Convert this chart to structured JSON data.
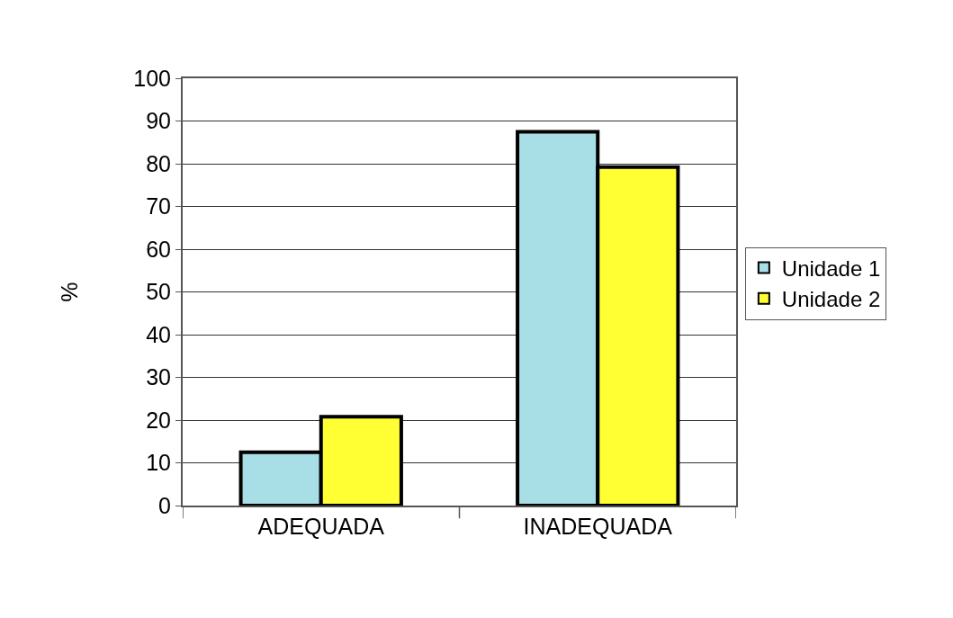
{
  "chart_data": {
    "type": "bar",
    "ylabel": "%",
    "categories": [
      "ADEQUADA",
      "INADEQUADA"
    ],
    "series": [
      {
        "name": "Unidade 1",
        "color": "#a8dfe6",
        "values": [
          12.5,
          87.5
        ]
      },
      {
        "name": "Unidade 2",
        "color": "#ffff33",
        "values": [
          20.8,
          79.2
        ]
      }
    ],
    "ylim": [
      0,
      100
    ],
    "yticks": [
      0,
      10,
      20,
      30,
      40,
      50,
      60,
      70,
      80,
      90,
      100
    ],
    "grid": "y",
    "legend": "right"
  }
}
